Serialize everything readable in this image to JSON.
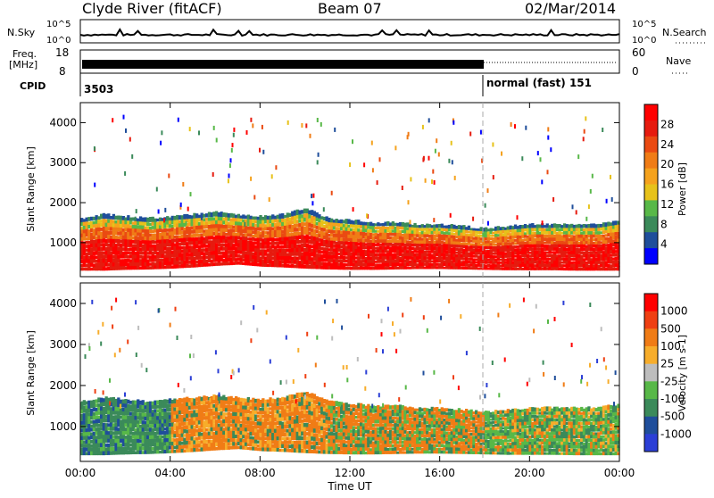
{
  "header": {
    "station": "Clyde River (fitACF)",
    "beam": "Beam 07",
    "date": "02/Mar/2014"
  },
  "noise_panel": {
    "left_label": "N.Sky",
    "right_label": "N.Search",
    "left_ticks": [
      "10^5",
      "10^0"
    ],
    "right_ticks": [
      "10^5",
      "10^0"
    ]
  },
  "freq_panel": {
    "left_label_1": "Freq.",
    "left_label_2": "[MHz]",
    "right_label": "Nave",
    "left_ticks": [
      "18",
      "8"
    ],
    "right_ticks": [
      "60",
      "0"
    ]
  },
  "cpid_panel": {
    "label": "CPID",
    "segment_1": "3503",
    "segment_2": "normal (fast) 151"
  },
  "colors": {
    "power": [
      "#0000ff",
      "#1f4e9b",
      "#3b8a5a",
      "#58b848",
      "#e7c21a",
      "#f5a21d",
      "#f07c16",
      "#ea4a12",
      "#e61b0f",
      "#ff0000"
    ],
    "velocity": [
      "#ff0000",
      "#ef3f12",
      "#f07c16",
      "#f7ad2b",
      "#bdbdbd",
      "#58b848",
      "#3b8a5a",
      "#1f4e9b",
      "#2c3fd6"
    ]
  },
  "chart_data": [
    {
      "type": "heatmap",
      "name": "power",
      "ylabel": "Slant Range [km]",
      "yticks": [
        "1000",
        "2000",
        "3000",
        "4000"
      ],
      "colorbar_label": "Power [dB]",
      "colorbar_ticks": [
        "4",
        "8",
        "12",
        "16",
        "20",
        "24",
        "28"
      ],
      "series": [
        {
          "x": [
            0.0,
            1.0,
            2.0,
            3.0,
            4.0,
            5.0,
            6.0,
            7.0,
            8.0,
            9.0,
            10.0,
            11.0,
            12.0,
            13.0,
            14.0,
            15.0,
            16.0,
            17.0,
            18.0,
            19.0,
            20.0,
            21.0,
            22.0,
            23.0,
            24.0
          ],
          "range_bottom": [
            300,
            300,
            320,
            330,
            350,
            380,
            420,
            450,
            400,
            380,
            350,
            330,
            320,
            320,
            330,
            340,
            340,
            330,
            320,
            310,
            310,
            310,
            300,
            300,
            300
          ],
          "range_top": [
            1600,
            1700,
            1650,
            1600,
            1650,
            1700,
            1750,
            1700,
            1650,
            1700,
            1850,
            1600,
            1550,
            1500,
            1500,
            1450,
            1450,
            1400,
            1350,
            1400,
            1450,
            1450,
            1450,
            1450,
            1550
          ]
        }
      ]
    },
    {
      "type": "heatmap",
      "name": "velocity",
      "ylabel": "Slant Range [km]",
      "yticks": [
        "1000",
        "2000",
        "3000",
        "4000"
      ],
      "colorbar_label": "Velocity [m s-1]",
      "colorbar_ticks": [
        "1000",
        "500",
        "100",
        "25",
        "-25",
        "-100",
        "-500",
        "-1000"
      ],
      "xlabel": "Time UT",
      "xticks": [
        "00:00",
        "04:00",
        "08:00",
        "12:00",
        "16:00",
        "20:00",
        "00:00"
      ],
      "series": [
        {
          "x": [
            0.0,
            1.0,
            2.0,
            3.0,
            4.0,
            5.0,
            6.0,
            7.0,
            8.0,
            9.0,
            10.0,
            11.0,
            12.0,
            13.0,
            14.0,
            15.0,
            16.0,
            17.0,
            18.0,
            19.0,
            20.0,
            21.0,
            22.0,
            23.0,
            24.0
          ],
          "range_bottom": [
            300,
            300,
            320,
            330,
            350,
            380,
            420,
            450,
            400,
            380,
            350,
            330,
            320,
            320,
            330,
            340,
            340,
            330,
            320,
            310,
            310,
            310,
            300,
            300,
            300
          ],
          "range_top": [
            1600,
            1700,
            1650,
            1600,
            1650,
            1700,
            1750,
            1700,
            1650,
            1700,
            1850,
            1600,
            1550,
            1500,
            1500,
            1450,
            1450,
            1400,
            1350,
            1400,
            1450,
            1450,
            1450,
            1450,
            1550
          ]
        }
      ]
    }
  ]
}
